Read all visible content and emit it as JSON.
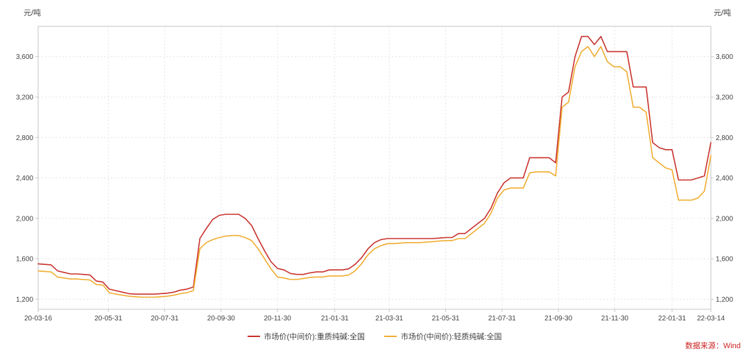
{
  "chart_data": {
    "type": "line",
    "title": "",
    "y_unit": "元/吨",
    "source": "数据来源：Wind",
    "grid_color": "#e3e3e3",
    "axis_color": "#c6c6c6",
    "text_color": "#404040",
    "x_range": [
      0,
      104
    ],
    "y_range": [
      1100,
      3900
    ],
    "y_ticks": [
      {
        "label": "1,200",
        "value": 1200
      },
      {
        "label": "1,600",
        "value": 1600
      },
      {
        "label": "2,000",
        "value": 2000
      },
      {
        "label": "2,400",
        "value": 2400
      },
      {
        "label": "2,800",
        "value": 2800
      },
      {
        "label": "3,200",
        "value": 3200
      },
      {
        "label": "3,600",
        "value": 3600
      }
    ],
    "x_ticks": [
      {
        "label": "20-03-16",
        "pos": 0
      },
      {
        "label": "20-05-31",
        "pos": 10.857
      },
      {
        "label": "20-07-31",
        "pos": 19.571
      },
      {
        "label": "20-09-30",
        "pos": 28.286
      },
      {
        "label": "20-11-30",
        "pos": 37
      },
      {
        "label": "21-01-31",
        "pos": 45.857
      },
      {
        "label": "21-03-31",
        "pos": 54.286
      },
      {
        "label": "21-05-31",
        "pos": 63
      },
      {
        "label": "21-07-31",
        "pos": 71.714
      },
      {
        "label": "21-09-30",
        "pos": 80.429
      },
      {
        "label": "21-11-30",
        "pos": 89.143
      },
      {
        "label": "22-01-31",
        "pos": 98
      },
      {
        "label": "22-03-14",
        "pos": 104
      }
    ],
    "x_note": "weekly observations from 20-03-16 to 22-03-14, index 0..104",
    "series": [
      {
        "name": "市场价(中间价):重质纯碱:全国",
        "color": "#c9302b",
        "values": [
          1550,
          1545,
          1540,
          1480,
          1465,
          1450,
          1450,
          1445,
          1440,
          1380,
          1370,
          1300,
          1285,
          1270,
          1255,
          1250,
          1250,
          1250,
          1250,
          1255,
          1260,
          1270,
          1290,
          1300,
          1320,
          1800,
          1900,
          1990,
          2030,
          2040,
          2040,
          2040,
          2000,
          1930,
          1800,
          1680,
          1570,
          1505,
          1490,
          1455,
          1445,
          1445,
          1460,
          1470,
          1470,
          1490,
          1490,
          1490,
          1500,
          1545,
          1610,
          1700,
          1760,
          1790,
          1800,
          1800,
          1800,
          1800,
          1800,
          1800,
          1800,
          1800,
          1805,
          1810,
          1810,
          1850,
          1850,
          1900,
          1950,
          2000,
          2100,
          2250,
          2350,
          2400,
          2400,
          2400,
          2600,
          2600,
          2600,
          2600,
          2550,
          3200,
          3250,
          3600,
          3800,
          3800,
          3720,
          3800,
          3650,
          3650,
          3650,
          3650,
          3300,
          3300,
          3300,
          2750,
          2700,
          2680,
          2680,
          2380,
          2380,
          2380,
          2400,
          2420,
          2750
        ]
      },
      {
        "name": "市场价(中间价):轻质纯碱:全国",
        "color": "#f0ac2f",
        "values": [
          1480,
          1475,
          1470,
          1420,
          1410,
          1400,
          1400,
          1395,
          1390,
          1345,
          1340,
          1265,
          1250,
          1240,
          1230,
          1225,
          1220,
          1220,
          1220,
          1225,
          1230,
          1240,
          1255,
          1265,
          1285,
          1700,
          1760,
          1790,
          1810,
          1825,
          1830,
          1830,
          1810,
          1780,
          1700,
          1600,
          1500,
          1420,
          1410,
          1395,
          1395,
          1405,
          1415,
          1420,
          1420,
          1430,
          1430,
          1430,
          1440,
          1480,
          1550,
          1640,
          1700,
          1730,
          1750,
          1750,
          1755,
          1760,
          1760,
          1760,
          1765,
          1770,
          1775,
          1780,
          1780,
          1800,
          1800,
          1850,
          1900,
          1950,
          2050,
          2200,
          2280,
          2300,
          2300,
          2300,
          2450,
          2460,
          2460,
          2460,
          2420,
          3100,
          3150,
          3500,
          3650,
          3700,
          3600,
          3700,
          3550,
          3500,
          3500,
          3450,
          3100,
          3100,
          3050,
          2600,
          2550,
          2500,
          2480,
          2180,
          2180,
          2180,
          2200,
          2270,
          2620
        ]
      }
    ]
  }
}
